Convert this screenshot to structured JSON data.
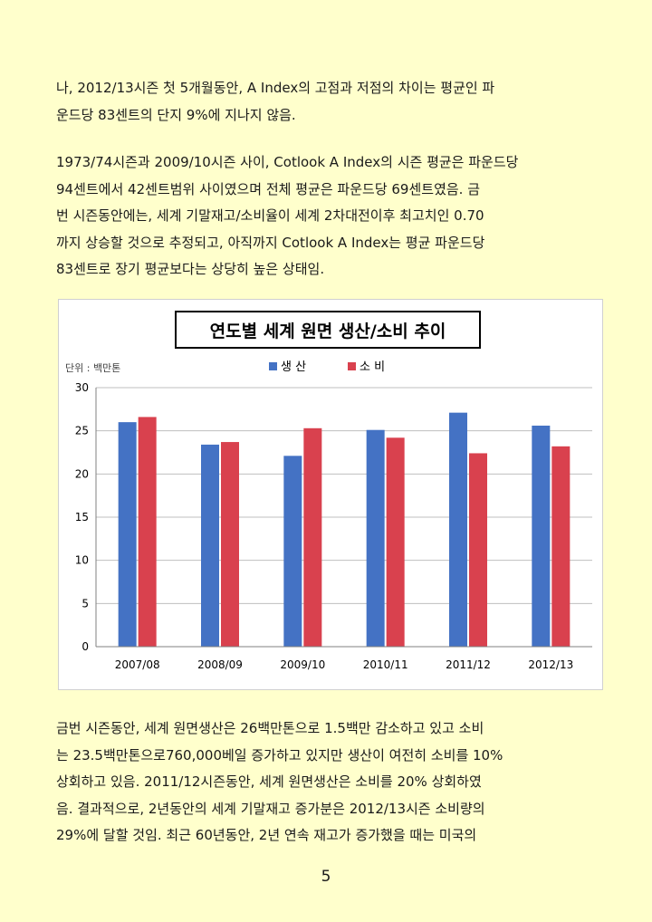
{
  "paragraphs": [
    {
      "lines": [
        "나, 2012/13시즌 첫 5개월동안, A Index의 고점과 저점의 차이는 평균인 파",
        "운드당 83센트의 단지 9%에 지나지 않음."
      ]
    },
    {
      "lines": [
        "1973/74시즌과 2009/10시즌 사이, Cotlook A Index의 시즌 평균은 파운드당",
        "94센트에서 42센트범위 사이였으며 전체 평균은 파운드당 69센트였음.  금",
        "번 시즌동안에는, 세계 기말재고/소비율이 세계 2차대전이후 최고치인 0.70",
        "까지 상승할 것으로 추정되고, 아직까지 Cotlook A Index는 평균 파운드당",
        "83센트로 장기 평균보다는 상당히 높은 상태임."
      ]
    },
    {
      "lines": [
        "금번 시즌동안, 세계 원면생산은 26백만톤으로 1.5백만 감소하고 있고 소비",
        "는 23.5백만톤으로760,000베일 증가하고 있지만 생산이 여전히 소비를 10%",
        "상회하고 있음.  2011/12시즌동안, 세계 원면생산은 소비를 20% 상회하였",
        "음.  결과적으로, 2년동안의 세계 기말재고 증가분은 2012/13시즌 소비량의",
        "29%에 달할 것임.  최근 60년동안, 2년 연속 재고가 증가했을 때는 미국의"
      ]
    }
  ],
  "chart_data": {
    "type": "bar",
    "title": "연도별 세계 원면 생산/소비 추이",
    "unit_label": "단위 : 백만톤",
    "categories": [
      "2007/08",
      "2008/09",
      "2009/10",
      "2010/11",
      "2011/12",
      "2012/13"
    ],
    "series": [
      {
        "name": "생 산",
        "color": "#4472c4",
        "values": [
          26.0,
          23.4,
          22.1,
          25.1,
          27.1,
          25.6
        ]
      },
      {
        "name": "소 비",
        "color": "#d9414e",
        "values": [
          26.6,
          23.7,
          25.3,
          24.2,
          22.4,
          23.2
        ]
      }
    ],
    "ylim": [
      0,
      30
    ],
    "yticks": [
      "0",
      "5",
      "10",
      "15",
      "20",
      "25",
      "30"
    ],
    "grid": true,
    "legend_position": "top-center"
  },
  "page_number": "5"
}
